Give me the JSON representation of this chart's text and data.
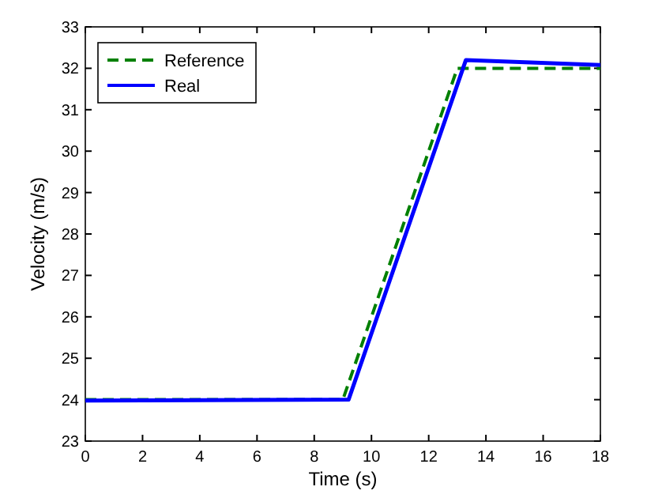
{
  "chart_data": {
    "type": "line",
    "xlabel": "Time (s)",
    "ylabel": "Velocity (m/s)",
    "x": [
      0,
      9,
      13,
      18
    ],
    "xlim": [
      0,
      18
    ],
    "xticks": [
      0,
      2,
      4,
      6,
      8,
      10,
      12,
      14,
      16,
      18
    ],
    "ylim": [
      23,
      33
    ],
    "yticks": [
      23,
      24,
      25,
      26,
      27,
      28,
      29,
      30,
      31,
      32,
      33
    ],
    "legend": "top left",
    "grid": false,
    "series": [
      {
        "name": "Reference",
        "color": "#008000",
        "line_style": "dashed",
        "values": [
          24,
          24,
          32,
          32
        ]
      },
      {
        "name": "Real",
        "color": "#0000ff",
        "line_style": "solid",
        "x": [
          0,
          9.2,
          13.3,
          18
        ],
        "values": [
          23.98,
          24,
          32.2,
          32.08
        ]
      }
    ]
  }
}
